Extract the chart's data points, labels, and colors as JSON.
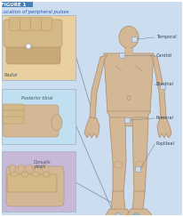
{
  "title_box_color": "#4a7fb5",
  "title_text": "FIGURE 1",
  "title_text_color": "#ffffff",
  "subtitle_text": "Location of peripheral pulses",
  "subtitle_color": "#2255aa",
  "bg_color": "#ccddf0",
  "fig_bg": "#ccddf0",
  "body_skin": "#d4b896",
  "body_outline": "#b09070",
  "pulse_labels": [
    "Temporal",
    "Carotid",
    "Brachial",
    "Femoral",
    "Popliteal"
  ],
  "dot_color_1": "#d0d8e8",
  "dot_color_2": "#a8c8e0",
  "dot_edge": "#8899aa",
  "inset1_label": "Radial",
  "inset1_bg": "#e8d0a0",
  "inset2_label": "Posterior tibial",
  "inset2_bg": "#c0dff0",
  "inset3_label": "Dorsalis\npedis",
  "inset3_bg": "#c8b8d8",
  "line_color": "#778899",
  "label_color": "#334455",
  "border_color": "#aabbcc"
}
